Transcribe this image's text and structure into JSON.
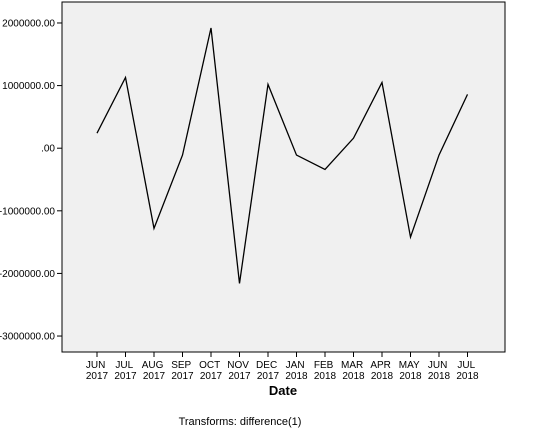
{
  "chart_data": {
    "type": "line",
    "categories": [
      "JUN 2017",
      "JUL 2017",
      "AUG 2017",
      "SEP 2017",
      "OCT 2017",
      "NOV 2017",
      "DEC 2017",
      "JAN 2018",
      "FEB 2018",
      "MAR 2018",
      "APR 2018",
      "MAY 2018",
      "JUN 2018",
      "JUL 2018"
    ],
    "values": [
      240000,
      1130000,
      -1280000,
      -110000,
      1920000,
      -2160000,
      1020000,
      -110000,
      -340000,
      160000,
      1050000,
      -1420000,
      -110000,
      860000
    ],
    "color": "#000000",
    "ylim": [
      -3255000,
      2335000
    ],
    "yticks": [
      {
        "value": 2000000,
        "label": "2000000.00"
      },
      {
        "value": 1000000,
        "label": "1000000.00"
      },
      {
        "value": 0,
        "label": ".00"
      },
      {
        "value": -1000000,
        "label": "-1000000.00"
      },
      {
        "value": -2000000,
        "label": "-2000000.00"
      },
      {
        "value": -3000000,
        "label": "-3000000.00"
      }
    ],
    "x_label": "Date",
    "footnote": "Transforms: difference(1)"
  }
}
